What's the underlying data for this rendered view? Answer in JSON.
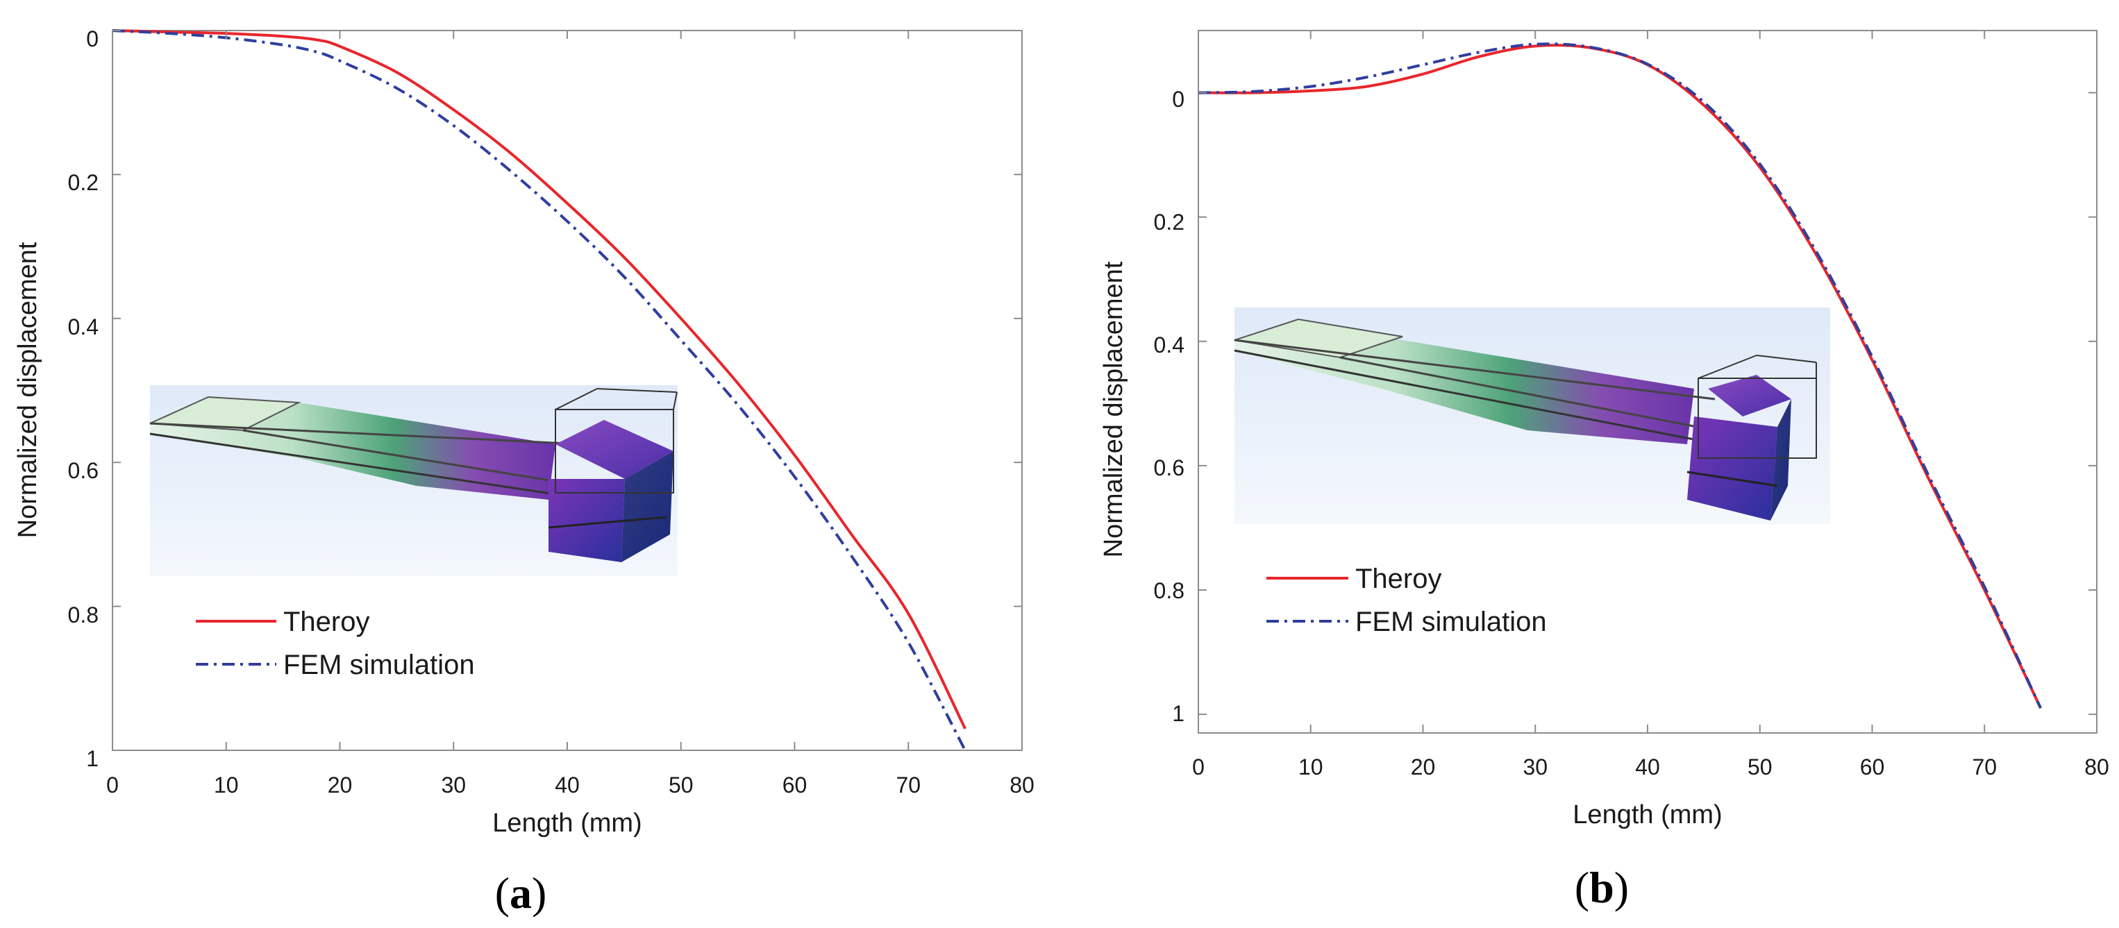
{
  "chart_data": [
    {
      "panel": "(a)",
      "panel_letter": "a",
      "type": "line",
      "xlabel": "Length (mm)",
      "ylabel": "Normalized displacement",
      "xlim": [
        0,
        80
      ],
      "ylim": [
        0,
        1
      ],
      "y_reversed": true,
      "xticks": [
        0,
        10,
        20,
        30,
        40,
        50,
        60,
        70,
        80
      ],
      "xtick_labels": [
        "0",
        "10",
        "20",
        "30",
        "40",
        "50",
        "60",
        "70",
        "80"
      ],
      "yticks": [
        0,
        0.2,
        0.4,
        0.6,
        0.8,
        1
      ],
      "ytick_labels": [
        "0",
        "0.2",
        "0.4",
        "0.6",
        "0.8",
        "1"
      ],
      "grid": false,
      "legend_position": "bottom-left",
      "inset": "deformed cantilever beam with end mass",
      "series": [
        {
          "name": "Theroy",
          "color": "#e8262c",
          "style": "solid",
          "x": [
            0,
            5,
            10,
            15,
            18,
            20,
            25,
            30,
            35,
            40,
            45,
            50,
            55,
            60,
            65,
            70,
            75
          ],
          "y": [
            0,
            0.002,
            0.004,
            0.008,
            0.013,
            0.022,
            0.058,
            0.11,
            0.17,
            0.24,
            0.315,
            0.4,
            0.49,
            0.59,
            0.7,
            0.81,
            0.97
          ]
        },
        {
          "name": "FEM simulation",
          "color": "#2f3f9e",
          "style": "dashdot",
          "x": [
            0,
            5,
            10,
            15,
            18,
            20,
            25,
            30,
            35,
            40,
            45,
            50,
            55,
            60,
            65,
            70,
            75
          ],
          "y": [
            0,
            0.004,
            0.01,
            0.02,
            0.03,
            0.042,
            0.08,
            0.132,
            0.195,
            0.265,
            0.342,
            0.43,
            0.52,
            0.62,
            0.73,
            0.85,
            1.0
          ]
        }
      ]
    },
    {
      "panel": "(b)",
      "panel_letter": "b",
      "type": "line",
      "xlabel": "Length (mm)",
      "ylabel": "Normalized displacement",
      "xlim": [
        0,
        80
      ],
      "ylim": [
        -0.1,
        1.03
      ],
      "y_reversed": true,
      "xticks": [
        0,
        10,
        20,
        30,
        40,
        50,
        60,
        70,
        80
      ],
      "xtick_labels": [
        "0",
        "10",
        "20",
        "30",
        "40",
        "50",
        "60",
        "70",
        "80"
      ],
      "yticks": [
        0,
        0.2,
        0.4,
        0.6,
        0.8,
        1
      ],
      "ytick_labels": [
        "0",
        "0.2",
        "0.4",
        "0.6",
        "0.8",
        "1"
      ],
      "grid": false,
      "legend_position": "bottom-left",
      "inset": "deformed cantilever beam with end mass",
      "series": [
        {
          "name": "Theroy",
          "color": "#e8262c",
          "style": "solid",
          "x": [
            0,
            5,
            10,
            15,
            20,
            25,
            30,
            35,
            40,
            45,
            50,
            55,
            60,
            65,
            70,
            75
          ],
          "y": [
            0,
            0,
            -0.003,
            -0.01,
            -0.03,
            -0.058,
            -0.075,
            -0.072,
            -0.045,
            0.02,
            0.12,
            0.26,
            0.43,
            0.62,
            0.8,
            0.99
          ]
        },
        {
          "name": "FEM simulation",
          "color": "#2f3f9e",
          "style": "dashdot",
          "x": [
            0,
            5,
            10,
            15,
            20,
            25,
            30,
            35,
            40,
            45,
            50,
            55,
            60,
            65,
            70,
            75
          ],
          "y": [
            0,
            -0.002,
            -0.01,
            -0.025,
            -0.045,
            -0.065,
            -0.078,
            -0.073,
            -0.046,
            0.015,
            0.115,
            0.255,
            0.425,
            0.615,
            0.795,
            0.99
          ]
        }
      ]
    }
  ]
}
